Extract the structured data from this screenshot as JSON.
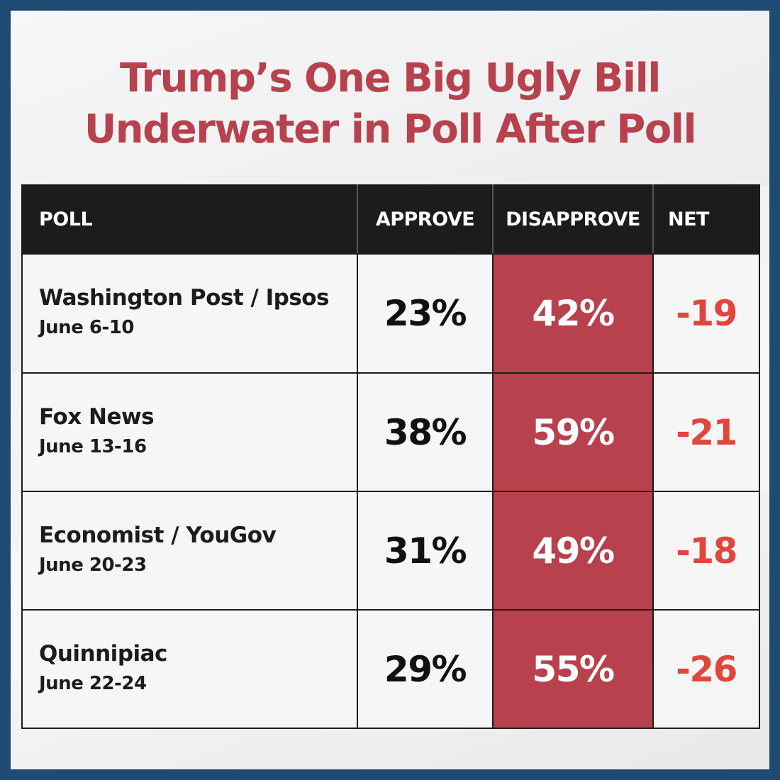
{
  "title": {
    "line1": "Trump’s One Big Ugly Bill",
    "line2": "Underwater in Poll After Poll"
  },
  "colors": {
    "title": "#b8414e",
    "disapprove_fill": "#b8414e",
    "net_text": "#e0473c",
    "header_bg": "#1c1c1c",
    "border": "#1e4a73"
  },
  "chart_data": {
    "type": "table",
    "columns": [
      "POLL",
      "APPROVE",
      "DISAPPROVE",
      "NET"
    ],
    "rows": [
      {
        "poll": "Washington Post / Ipsos",
        "dates": "June 6-10",
        "approve": "23%",
        "disapprove": "42%",
        "net": "-19"
      },
      {
        "poll": "Fox News",
        "dates": "June 13-16",
        "approve": "38%",
        "disapprove": "59%",
        "net": "-21"
      },
      {
        "poll": "Economist / YouGov",
        "dates": "June 20-23",
        "approve": "31%",
        "disapprove": "49%",
        "net": "-18"
      },
      {
        "poll": "Quinnipiac",
        "dates": "June 22-24",
        "approve": "29%",
        "disapprove": "55%",
        "net": "-26"
      }
    ]
  }
}
